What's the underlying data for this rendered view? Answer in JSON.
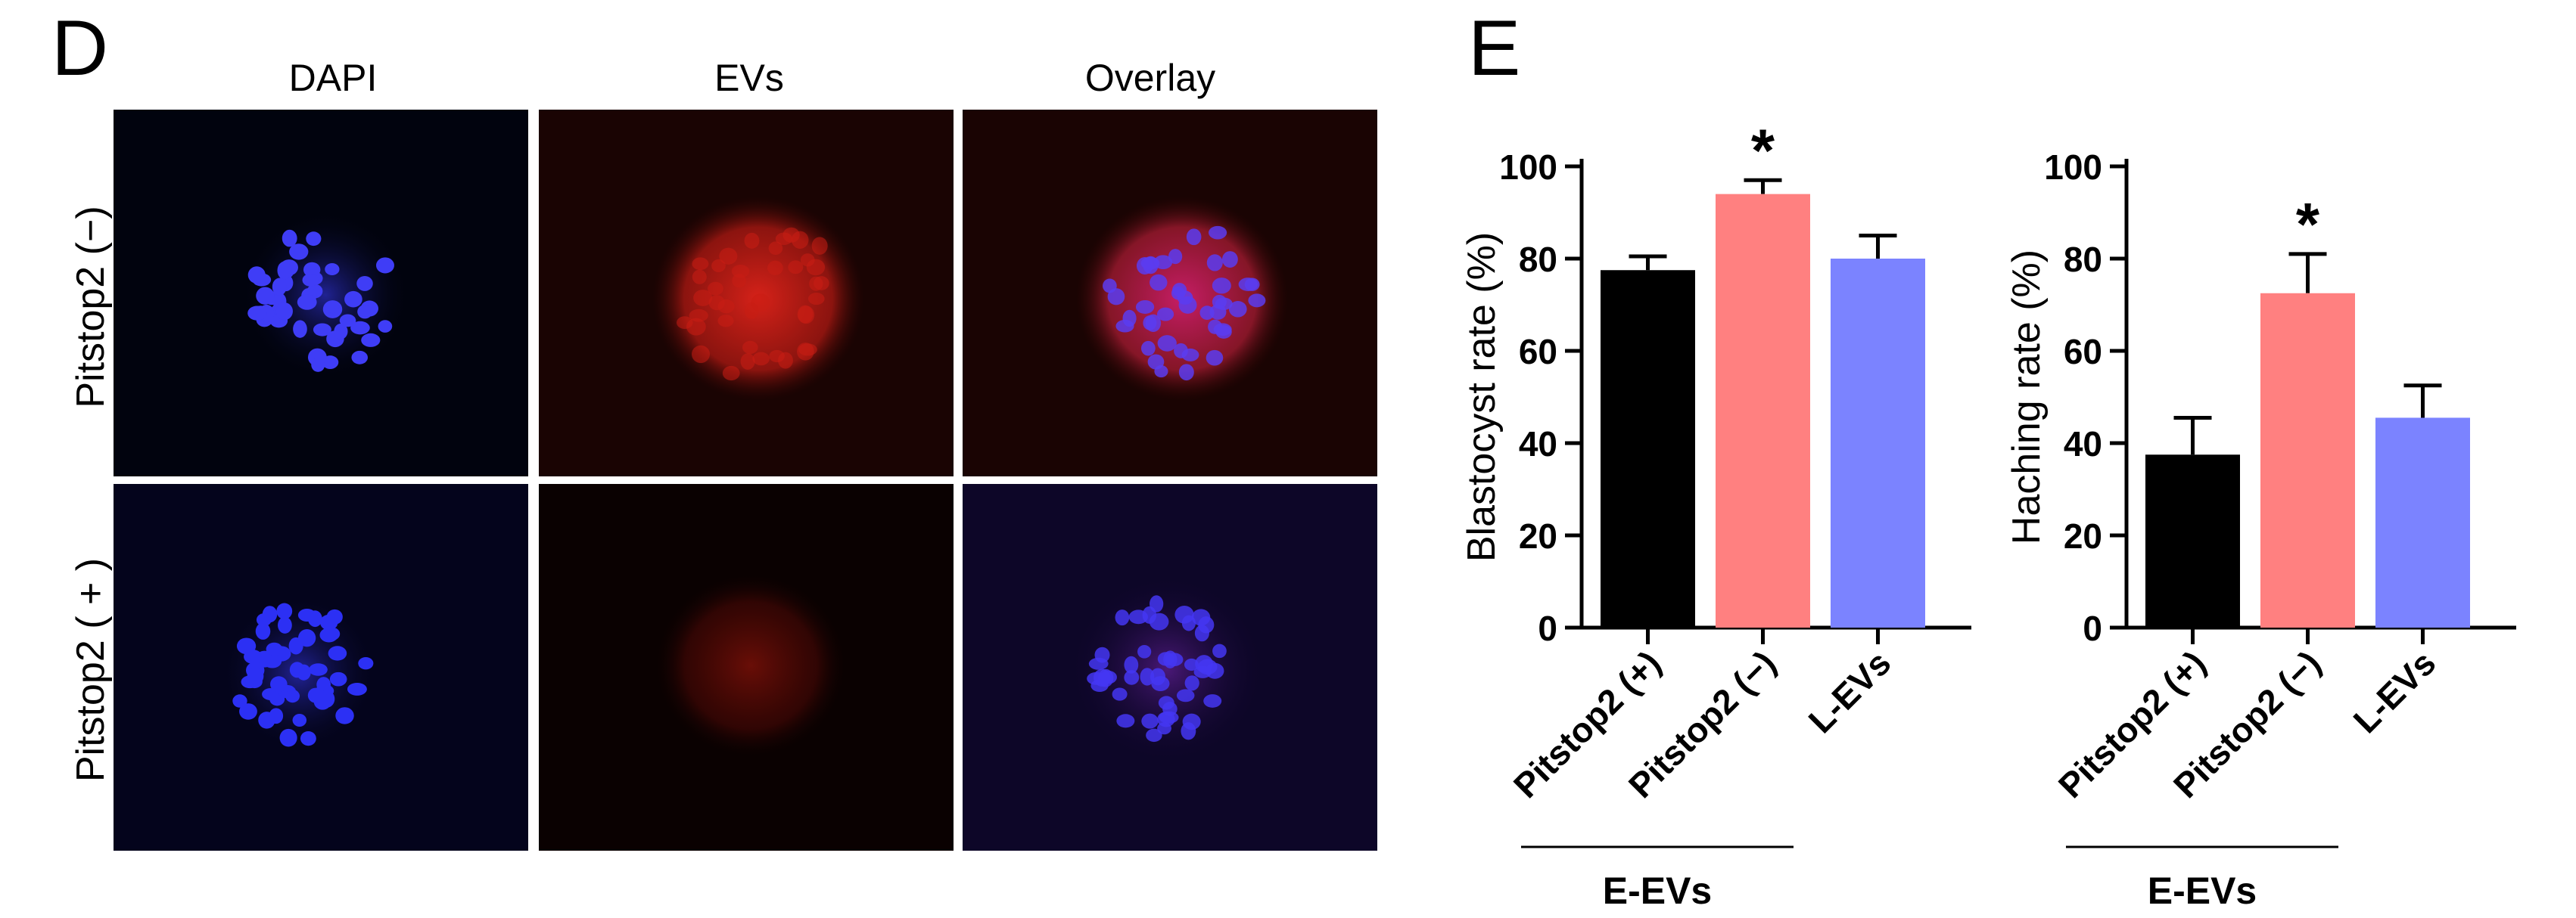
{
  "panel_d": {
    "letter": "D",
    "columns": [
      "DAPI",
      "EVs",
      "Overlay"
    ],
    "rows": [
      "Pitstop2 (−)",
      "Pitstop2 ( + )"
    ]
  },
  "panel_e": {
    "letter": "E"
  },
  "chart_data": [
    {
      "type": "bar",
      "categories": [
        "Pitstop2 (+)",
        "Pitstop2 (−)",
        "L-EVs"
      ],
      "values": [
        77.5,
        94,
        80
      ],
      "errors": [
        3,
        3,
        5
      ],
      "colors": [
        "#000000",
        "#FF8080",
        "#7B83FF"
      ],
      "significance": [
        "",
        "*",
        ""
      ],
      "xlabel": "",
      "ylabel": "Blastocyst rate (%)",
      "ylim": [
        0,
        100
      ],
      "yticks": [
        0,
        20,
        40,
        60,
        80,
        100
      ],
      "group_label": "E-EVs"
    },
    {
      "type": "bar",
      "categories": [
        "Pitstop2 (+)",
        "Pitstop2 (−)",
        "L-EVs"
      ],
      "values": [
        37.5,
        72.5,
        45.5
      ],
      "errors": [
        8,
        8.5,
        7
      ],
      "colors": [
        "#000000",
        "#FF8080",
        "#7B83FF"
      ],
      "significance": [
        "",
        "*",
        ""
      ],
      "xlabel": "",
      "ylabel": "Haching rate (%)",
      "ylim": [
        0,
        100
      ],
      "yticks": [
        0,
        20,
        40,
        60,
        80,
        100
      ],
      "group_label": "E-EVs"
    }
  ]
}
